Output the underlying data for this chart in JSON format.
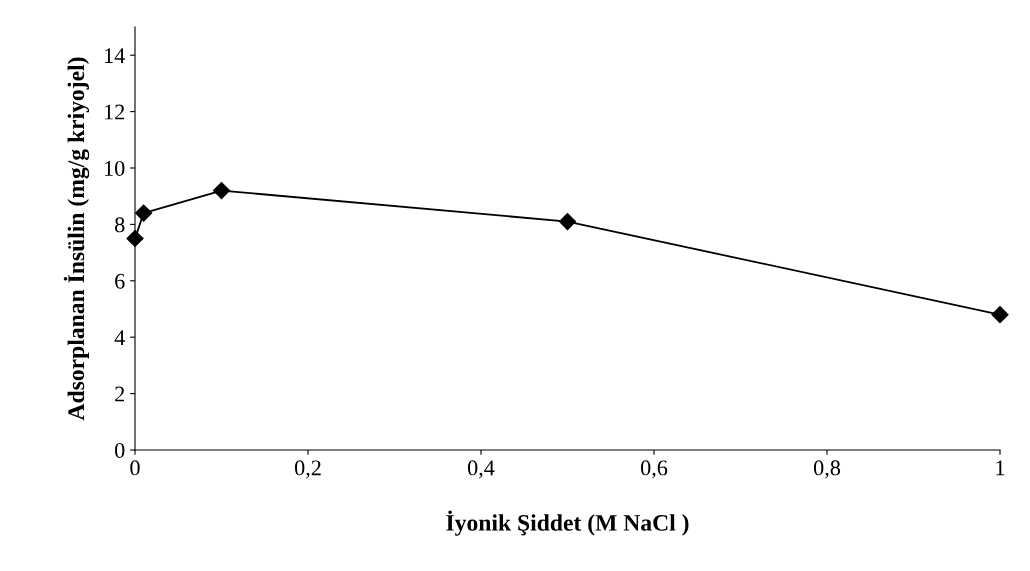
{
  "chart_data": {
    "type": "line",
    "xlabel": "İyonik Şiddet (M NaCl )",
    "ylabel": "Adsorplanan İnsülin (mg/g kriyojel)",
    "x": [
      0,
      0.01,
      0.1,
      0.5,
      1
    ],
    "series": [
      {
        "color": "#000000",
        "values": [
          7.5,
          8.4,
          9.2,
          8.1,
          4.8
        ]
      }
    ],
    "xlim": [
      0,
      1
    ],
    "xticks": [
      0,
      {
        "value": 0.2,
        "label": "0,2"
      },
      {
        "value": 0.4,
        "label": "0,4"
      },
      {
        "value": 0.6,
        "label": "0,6"
      },
      {
        "value": 0.8,
        "label": "0,8"
      },
      1
    ],
    "ylim": [
      0,
      15
    ],
    "yticks": [
      0,
      2,
      4,
      6,
      8,
      10,
      12,
      14
    ],
    "marker": "diamond",
    "line_style": "solid",
    "grid": false,
    "legend": false
  }
}
